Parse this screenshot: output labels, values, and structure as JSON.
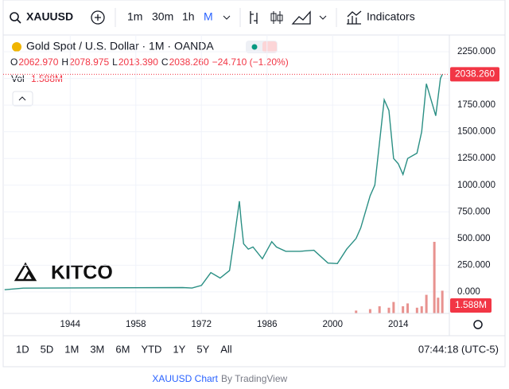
{
  "toolbar": {
    "symbol": "XAUUSD",
    "intervals": [
      "1m",
      "30m",
      "1h",
      "M"
    ],
    "indicators": "Indicators"
  },
  "legend": {
    "title": "Gold Spot / U.S. Dollar · 1M · OANDA",
    "ohlc": [
      {
        "key": "O",
        "value": "2062.970"
      },
      {
        "key": "H",
        "value": "2078.975"
      },
      {
        "key": "L",
        "value": "2013.390"
      },
      {
        "key": "C",
        "value": "2038.260"
      }
    ],
    "change": "−24.710 (−1.20%)",
    "vol_key": "Vol",
    "vol_value": "1.588M"
  },
  "watermark": "KITCO",
  "chart_data": {
    "type": "line",
    "color": "#2a8f84",
    "x": [
      1930,
      1934,
      1968,
      1970,
      1972,
      1974,
      1976,
      1978,
      1979,
      1980.1,
      1980.5,
      1981,
      1982,
      1983,
      1985,
      1987,
      1988,
      1990,
      1993,
      1996,
      1999,
      2001,
      2003,
      2005,
      2006,
      2008,
      2009,
      2010,
      2011,
      2012,
      2013,
      2014,
      2015,
      2016,
      2018,
      2019,
      2020,
      2021,
      2022,
      2023,
      2023.4
    ],
    "values": [
      20,
      35,
      40,
      36,
      60,
      180,
      130,
      200,
      500,
      850,
      650,
      450,
      400,
      420,
      310,
      470,
      420,
      380,
      380,
      390,
      270,
      265,
      400,
      500,
      600,
      900,
      1000,
      1400,
      1800,
      1700,
      1250,
      1200,
      1100,
      1250,
      1300,
      1500,
      1950,
      1800,
      1650,
      2000,
      2038.26
    ],
    "xlim": [
      1929.7,
      2024.9
    ],
    "xticks": [
      1944,
      1958,
      1972,
      1986,
      2000,
      2014
    ],
    "ylim": [
      -202,
      2362
    ],
    "yticks": [
      {
        "value": 0,
        "label": "0.000"
      },
      {
        "value": 250,
        "label": "250.000"
      },
      {
        "value": 500,
        "label": "500.000"
      },
      {
        "value": 750,
        "label": "750.000"
      },
      {
        "value": 1000,
        "label": "1000.000"
      },
      {
        "value": 1250,
        "label": "1250.000"
      },
      {
        "value": 1500,
        "label": "1500.000"
      },
      {
        "value": 1750,
        "label": "1750.000"
      },
      {
        "value": 2000,
        "label": "2000.000"
      },
      {
        "value": 2250,
        "label": "2250.000"
      }
    ],
    "last_price": {
      "value": 2038.26,
      "label": "2038.260"
    },
    "volume": {
      "color": "#e8928f",
      "x": [
        2005,
        2008,
        2010,
        2012,
        2013,
        2015,
        2016,
        2018,
        2019,
        2020,
        2021.7,
        2022.5,
        2023.4
      ],
      "values": [
        0.2,
        0.3,
        0.5,
        0.4,
        0.8,
        0.5,
        0.7,
        0.4,
        0.5,
        1.3,
        5.0,
        1.1,
        1.588
      ],
      "last": {
        "value": 1.588,
        "label": "1.588M"
      }
    }
  },
  "ranges": [
    "1D",
    "5D",
    "1M",
    "3M",
    "6M",
    "YTD",
    "1Y",
    "5Y",
    "All"
  ],
  "clock": "07:44:18 (UTC-5)",
  "footer": {
    "link": "XAUUSD Chart",
    "by": "By TradingView"
  }
}
